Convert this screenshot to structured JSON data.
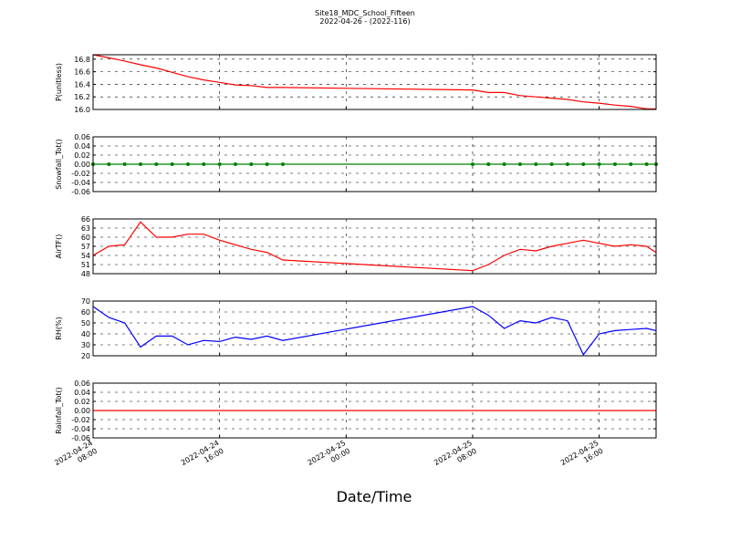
{
  "chart_data": {
    "type": "line",
    "title": "Site18_MDC_School_Fifteen",
    "subtitle": "2022-04-26 - (2022-116)",
    "xlabel": "Date/Time",
    "grid": true,
    "xlim": [
      "2022-04-24 08:00",
      "2022-04-25 19:36"
    ],
    "xticks": [
      "2022-04-24 08:00",
      "2022-04-24 16:00",
      "2022-04-25 00:00",
      "2022-04-25 08:00",
      "2022-04-25 16:00"
    ],
    "x": [
      "2022-04-24 08:00",
      "2022-04-24 09:00",
      "2022-04-24 10:00",
      "2022-04-24 11:00",
      "2022-04-24 12:00",
      "2022-04-24 13:00",
      "2022-04-24 14:00",
      "2022-04-24 15:00",
      "2022-04-24 16:00",
      "2022-04-24 17:00",
      "2022-04-24 18:00",
      "2022-04-24 19:00",
      "2022-04-24 20:00",
      "2022-04-25 08:00",
      "2022-04-25 09:00",
      "2022-04-25 10:00",
      "2022-04-25 11:00",
      "2022-04-25 12:00",
      "2022-04-25 13:00",
      "2022-04-25 14:00",
      "2022-04-25 15:00",
      "2022-04-25 16:00",
      "2022-04-25 17:00",
      "2022-04-25 18:00",
      "2022-04-25 19:00",
      "2022-04-25 19:36"
    ],
    "panels": [
      {
        "ylabel": "P(unitless)",
        "color": "#ff0000",
        "ylim": [
          16.0,
          16.87
        ],
        "yticks": [
          {
            "value": 16.0,
            "label": "16.0"
          },
          16.2,
          16.4,
          16.6,
          16.8
        ],
        "values": [
          16.87,
          16.82,
          16.77,
          16.71,
          16.66,
          16.59,
          16.52,
          16.47,
          16.43,
          16.39,
          16.38,
          16.35,
          16.35,
          16.31,
          16.27,
          16.27,
          16.22,
          16.2,
          16.18,
          16.16,
          16.12,
          16.1,
          16.07,
          16.05,
          16.01,
          16.01
        ]
      },
      {
        "ylabel": "Snowfall_Tot()",
        "color": "#008000",
        "markers": true,
        "ylim": [
          -0.06,
          0.06
        ],
        "yticks": [
          -0.06,
          -0.04,
          -0.02,
          {
            "value": 0,
            "label": "0.00"
          },
          0.02,
          0.04,
          0.06
        ],
        "values": [
          0,
          0,
          0,
          0,
          0,
          0,
          0,
          0,
          0,
          0,
          0,
          0,
          0,
          0,
          0,
          0,
          0,
          0,
          0,
          0,
          0,
          0,
          0,
          0,
          0,
          0
        ]
      },
      {
        "ylabel": "AirTF()",
        "color": "#ff0000",
        "ylim": [
          48,
          66
        ],
        "yticks": [
          48,
          51,
          54,
          57,
          60,
          63,
          66
        ],
        "values": [
          54,
          57,
          57.5,
          65,
          60,
          60,
          61,
          61,
          59,
          57.5,
          56,
          55,
          52.5,
          49,
          51,
          54,
          56,
          55.5,
          57,
          58,
          59,
          58,
          57,
          57.5,
          57,
          55
        ]
      },
      {
        "ylabel": "RH(%)",
        "color": "#0000ff",
        "ylim": [
          20,
          70
        ],
        "yticks": [
          20,
          30,
          40,
          50,
          60,
          70
        ],
        "values": [
          65,
          55,
          50,
          28,
          38,
          38,
          30,
          34,
          33,
          37,
          35,
          38,
          34,
          65,
          57,
          45,
          52,
          50,
          55,
          52,
          21,
          40,
          43,
          44,
          45,
          43
        ]
      },
      {
        "ylabel": "Rainfall_Tot()",
        "color": "#ff0000",
        "ylim": [
          -0.06,
          0.06
        ],
        "yticks": [
          -0.06,
          -0.04,
          -0.02,
          {
            "value": 0,
            "label": "0.00"
          },
          0.02,
          0.04,
          0.06
        ],
        "values": [
          0,
          0,
          0,
          0,
          0,
          0,
          0,
          0,
          0,
          0,
          0,
          0,
          0,
          0,
          0,
          0,
          0,
          0,
          0,
          0,
          0,
          0,
          0,
          0,
          0,
          0
        ]
      }
    ]
  }
}
